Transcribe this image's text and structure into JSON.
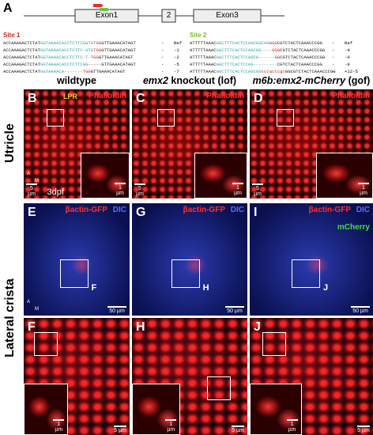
{
  "panel_a": {
    "label": "A",
    "exons": [
      "Exon1",
      "2",
      "Exon3"
    ],
    "sites": [
      {
        "title": "Site 1",
        "rows": [
          {
            "seq": [
              "ACCAAAGACTCTAT",
              "GGTAAAACACCTCTTCGGTG",
              "TGG",
              "GTTGAAACATAGT"
            ],
            "dash": "-",
            "change": "Ref"
          },
          {
            "seq": [
              "ACCAAAGACTCTAT",
              "GGTAAAACACCTCTTC-GTG",
              "TGG",
              "GTTGAAACATAGT"
            ],
            "dash": "-",
            "change": "-1"
          },
          {
            "seq": [
              "ACCAAAGACTCTAT",
              "GGTAAAACACCTCTTC-T-",
              "TGG",
              "GTTGAAACATAGT"
            ],
            "dash": "-",
            "change": "-2"
          },
          {
            "seq": [
              "ACCAAAGACTCTAT",
              "GGTAAAACACCTCTTCGG",
              "-----",
              "GTTGAAACATAGT"
            ],
            "dash": "-",
            "change": "-5"
          },
          {
            "seq": [
              "ACCAAAGACTCTAT",
              "GGTAAAACA-------",
              "TGG",
              "GTTGAAACATAGT"
            ],
            "dash": "-",
            "change": "-7"
          }
        ]
      },
      {
        "title": "Site 2",
        "rows": [
          {
            "seq": [
              "ATTTTTAAAC",
              "GGCTTTCACTCCAGCGGCAG",
              "GGG",
              "CGTCTACTCAAACCCGG"
            ],
            "dash": "-",
            "change": "Ref"
          },
          {
            "seq": [
              "ATTTTTAAAC",
              "GGCTTTCACTCCAGCGG----",
              "GGG",
              "CGTCTACTCAAACCCGG"
            ],
            "dash": "-",
            "change": "-4"
          },
          {
            "seq": [
              "ATTTTTAAAC",
              "GGCTTTCACTCCAGCG------",
              "GG",
              "CGTCTACTCAAACCCGG"
            ],
            "dash": "-",
            "change": "-6"
          },
          {
            "seq": [
              "ATTTTTAAAC",
              "GGCTTTCACTCCAG---------",
              "",
              "CGTCTACTCAAACCCGG"
            ],
            "dash": "-",
            "change": "-9"
          },
          {
            "seq": [
              "ATTTTTAAAC",
              "GGCTTTCACTCCAGCGG",
              "tccactcgc",
              "GGCGTCTACTCAAACCCGG"
            ],
            "dash": "-",
            "change": "+12-5"
          }
        ]
      }
    ]
  },
  "columns": [
    {
      "plain": "wildtype"
    },
    {
      "italic": "emx2",
      "plain": " knockout (lof)"
    },
    {
      "italic": "m6b:emx2-mCherry",
      "plain": " (gof)"
    }
  ],
  "rows": [
    "Utricle",
    "Lateral crista"
  ],
  "panels": [
    {
      "label": "B",
      "stains": [
        {
          "text": "Phalloidin",
          "color": "#ff3030"
        }
      ],
      "scale": "5 µm",
      "inset_scale": "1 µm",
      "region": "LPR",
      "stage": "3dpf",
      "axes": [
        "A",
        "M"
      ]
    },
    {
      "label": "C",
      "stains": [
        {
          "text": "Phalloidin",
          "color": "#ff3030"
        }
      ],
      "scale": "5 µm",
      "inset_scale": "1 µm"
    },
    {
      "label": "D",
      "stains": [
        {
          "text": "Phalloidin",
          "color": "#ff3030"
        }
      ],
      "scale": "5 µm",
      "inset_scale": "1 µm"
    },
    {
      "label": "E",
      "stains": [
        {
          "text": "βactin-GFP",
          "color": "#ff3030"
        },
        {
          "text": "DIC",
          "color": "#5a6cff"
        }
      ],
      "scale": "50 µm",
      "box_label": "F",
      "axes": [
        "A",
        "M"
      ]
    },
    {
      "label": "G",
      "stains": [
        {
          "text": "βactin-GFP",
          "color": "#ff3030"
        },
        {
          "text": "DIC",
          "color": "#5a6cff"
        }
      ],
      "scale": "50 µm",
      "box_label": "H"
    },
    {
      "label": "I",
      "stains": [
        {
          "text": "βactin-GFP",
          "color": "#ff3030"
        },
        {
          "text": "DIC",
          "color": "#5a6cff"
        },
        {
          "text": "mCherry",
          "color": "#40e040"
        }
      ],
      "scale": "50 µm",
      "box_label": "J"
    },
    {
      "label": "F",
      "stains": [],
      "scale": "5 µm",
      "inset_scale": "1 µm"
    },
    {
      "label": "H",
      "stains": [],
      "scale": "5 µm",
      "inset_scale": "1 µm"
    },
    {
      "label": "J",
      "stains": [],
      "scale": "5 µm",
      "inset_scale": "1 µm"
    }
  ]
}
